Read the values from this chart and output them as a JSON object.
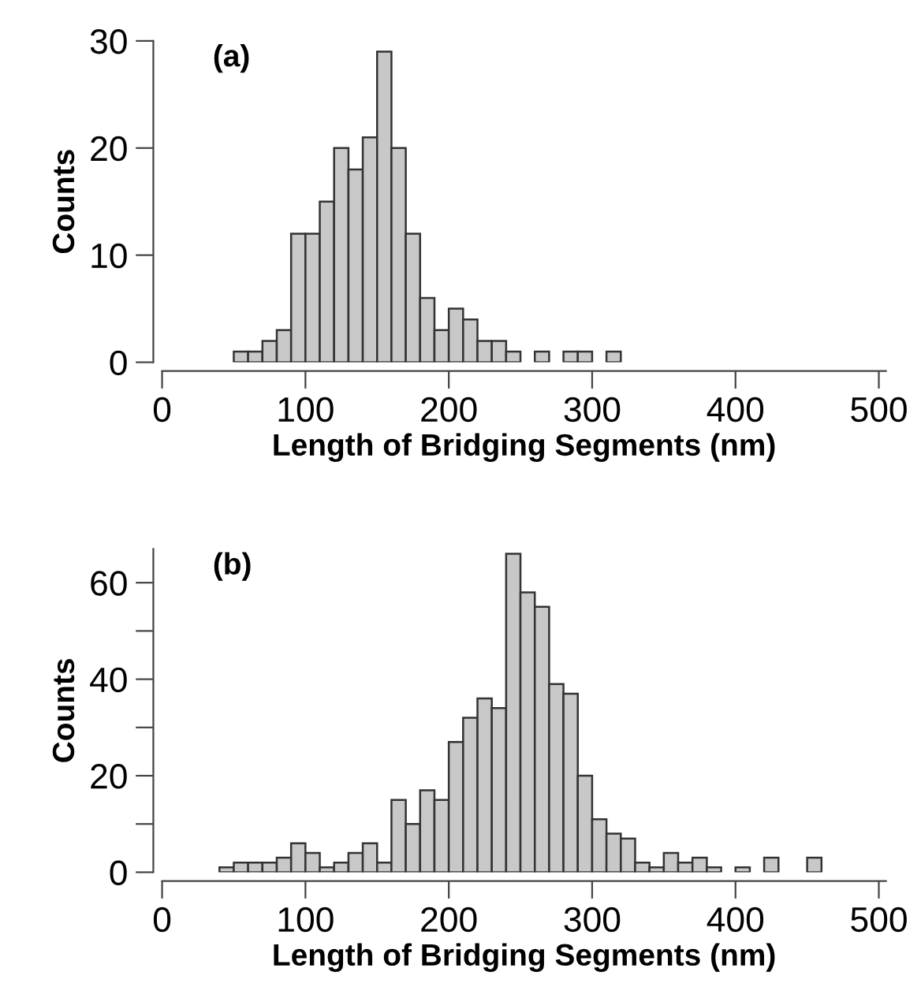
{
  "chart_data": [
    {
      "type": "histogram",
      "xlabel": "Length of Bridging Segments (nm)",
      "ylabel": "Counts",
      "annotations": [
        "(a)"
      ],
      "color": "#c8c8c8",
      "bins": [
        50,
        60,
        70,
        80,
        90,
        100,
        110,
        120,
        130,
        140,
        150,
        160,
        170,
        180,
        190,
        200,
        210,
        220,
        230,
        240,
        250,
        260,
        270,
        280,
        290,
        300,
        310,
        320
      ],
      "values": [
        1,
        1,
        2,
        3,
        12,
        12,
        15,
        20,
        18,
        21,
        29,
        20,
        12,
        6,
        3,
        5,
        4,
        2,
        2,
        1,
        0,
        1,
        0,
        1,
        1,
        0,
        1
      ],
      "xlim": [
        0,
        505
      ],
      "xticks": [
        0,
        100,
        200,
        300,
        400,
        500
      ],
      "ylim": [
        0,
        30
      ],
      "yticks": [
        0,
        10,
        20,
        30
      ],
      "grid": false
    },
    {
      "type": "histogram",
      "xlabel": "Length of Bridging Segments (nm)",
      "ylabel": "Counts",
      "annotations": [
        "(b)"
      ],
      "color": "#c8c8c8",
      "bins": [
        40,
        50,
        60,
        70,
        80,
        90,
        100,
        110,
        120,
        130,
        140,
        150,
        160,
        170,
        180,
        190,
        200,
        210,
        220,
        230,
        240,
        250,
        260,
        270,
        280,
        290,
        300,
        310,
        320,
        330,
        340,
        350,
        360,
        370,
        380,
        390,
        400,
        410,
        420,
        430,
        440,
        450,
        460
      ],
      "values": [
        1,
        2,
        2,
        2,
        3,
        6,
        4,
        1,
        2,
        4,
        6,
        2,
        15,
        10,
        17,
        15,
        27,
        32,
        36,
        34,
        66,
        58,
        55,
        39,
        37,
        20,
        11,
        8,
        7,
        2,
        1,
        4,
        2,
        3,
        1,
        0,
        1,
        0,
        3,
        0,
        0,
        3
      ],
      "xlim": [
        0,
        505
      ],
      "xticks": [
        0,
        100,
        200,
        300,
        400,
        500
      ],
      "ylim": [
        0,
        67
      ],
      "yticks": [
        0,
        {
          "value": 10,
          "label": null
        },
        20,
        {
          "value": 30,
          "label": null
        },
        40,
        {
          "value": 50,
          "label": null
        },
        60
      ],
      "grid": false
    }
  ]
}
